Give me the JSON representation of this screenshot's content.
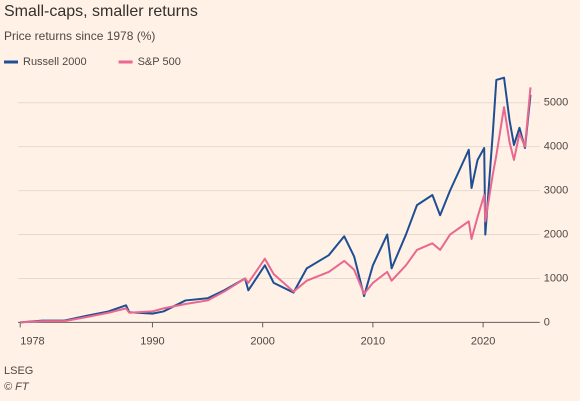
{
  "chart_data": {
    "type": "line",
    "title": "Small-caps, smaller returns",
    "subtitle": "Price returns since 1978 (%)",
    "x": [
      1978,
      1980,
      1982,
      1984,
      1986,
      1987.6,
      1987.9,
      1990,
      1991,
      1993,
      1995,
      1996.5,
      1998.4,
      1998.7,
      2000.2,
      2001,
      2002.8,
      2004,
      2006,
      2007.4,
      2008.3,
      2009.2,
      2010,
      2011.3,
      2011.7,
      2013,
      2014,
      2015.4,
      2016.1,
      2017,
      2018.7,
      2018.95,
      2019.5,
      2020.1,
      2020.2,
      2020.9,
      2021.2,
      2021.9,
      2022.4,
      2022.8,
      2023.3,
      2023.8,
      2024.3
    ],
    "series": [
      {
        "name": "Russell 2000",
        "color": "#1e4f93",
        "values": [
          0,
          40,
          40,
          150,
          250,
          390,
          230,
          200,
          250,
          500,
          550,
          730,
          1000,
          730,
          1300,
          900,
          680,
          1230,
          1530,
          1960,
          1500,
          600,
          1300,
          2000,
          1230,
          2000,
          2670,
          2900,
          2440,
          3000,
          3930,
          3060,
          3700,
          3970,
          2000,
          4380,
          5520,
          5570,
          4600,
          4040,
          4430,
          3970,
          5180
        ]
      },
      {
        "name": "S&P 500",
        "color": "#e8688f",
        "values": [
          0,
          30,
          30,
          120,
          220,
          320,
          220,
          250,
          320,
          420,
          500,
          700,
          1000,
          900,
          1450,
          1100,
          700,
          950,
          1150,
          1400,
          1200,
          650,
          900,
          1150,
          950,
          1300,
          1650,
          1800,
          1650,
          2000,
          2300,
          1900,
          2400,
          2900,
          2300,
          3400,
          3800,
          4900,
          4100,
          3700,
          4300,
          4000,
          5350
        ]
      }
    ],
    "xlim": [
      1977.8,
      2024.6
    ],
    "xticks": [
      1978,
      1990,
      2000,
      2010,
      2020
    ],
    "ylim": [
      -150,
      5700
    ],
    "yticks": [
      0,
      1000,
      2000,
      3000,
      4000,
      5000
    ],
    "grid": true,
    "source": "LSEG",
    "credit": "© FT"
  }
}
